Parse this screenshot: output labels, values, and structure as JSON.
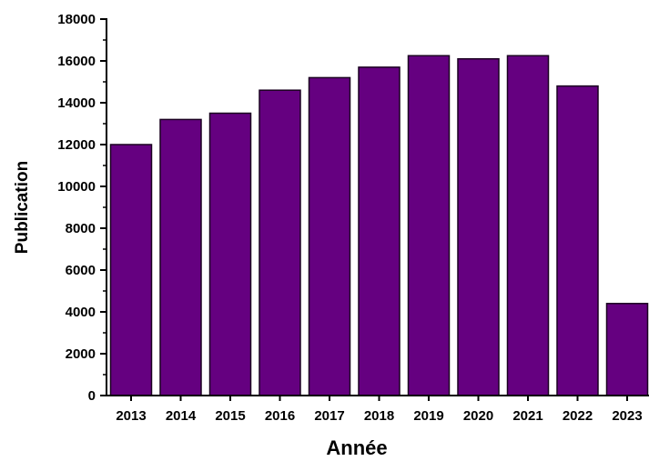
{
  "chart_data": {
    "type": "bar",
    "categories": [
      "2013",
      "2014",
      "2015",
      "2016",
      "2017",
      "2018",
      "2019",
      "2020",
      "2021",
      "2022",
      "2023"
    ],
    "values": [
      12000,
      13200,
      13500,
      14600,
      15200,
      15700,
      16250,
      16100,
      16250,
      14800,
      4400
    ],
    "xlabel": "Année",
    "ylabel": "Publication",
    "ylim": [
      0,
      18000
    ],
    "yticks": [
      0,
      2000,
      4000,
      6000,
      8000,
      10000,
      12000,
      14000,
      16000,
      18000
    ],
    "bar_color": "#650080",
    "bar_edge_color": "#1a0020",
    "grid": false,
    "legend": "none"
  }
}
